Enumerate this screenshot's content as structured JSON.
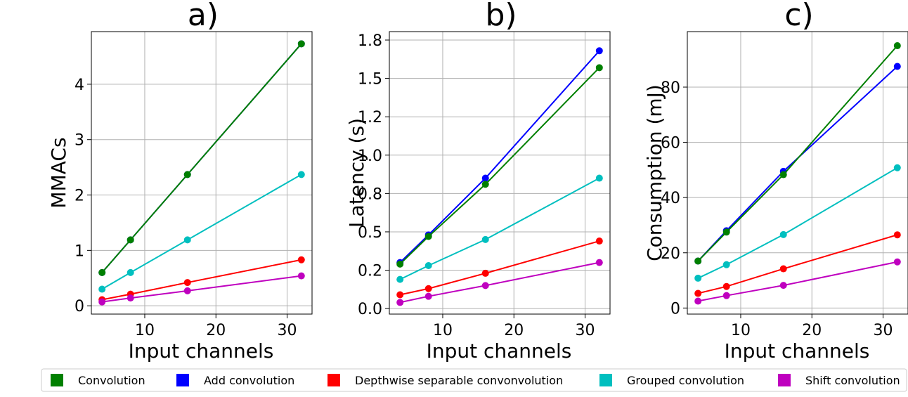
{
  "chart_data": [
    {
      "type": "line",
      "title": "a)",
      "xlabel": "Input channels",
      "ylabel": "MMACs",
      "x": [
        4,
        8,
        16,
        32
      ],
      "xlim": [
        2.5,
        33.5
      ],
      "ylim": [
        -0.15,
        4.95
      ],
      "xticks": [
        10,
        20,
        30
      ],
      "yticks": [
        0,
        1,
        2,
        3,
        4
      ],
      "yticklabels": [
        "0",
        "1",
        "2",
        "3",
        "4"
      ],
      "grid": true,
      "series": [
        {
          "name": "Grouped convolution",
          "color": "#00bfbf",
          "values": [
            0.3,
            0.6,
            1.19,
            2.37
          ]
        },
        {
          "name": "Depthwise separable convonvolution",
          "color": "#ff0000",
          "values": [
            0.11,
            0.21,
            0.42,
            0.83
          ]
        },
        {
          "name": "Shift convolution",
          "color": "#bf00bf",
          "values": [
            0.07,
            0.14,
            0.27,
            0.54
          ]
        },
        {
          "name": "Add convolution",
          "color": "#0000ff",
          "values": [
            0.6,
            1.19,
            2.37,
            4.73
          ]
        },
        {
          "name": "Convolution",
          "color": "#008000",
          "values": [
            0.6,
            1.19,
            2.37,
            4.73
          ]
        }
      ]
    },
    {
      "type": "line",
      "title": "b)",
      "xlabel": "Input channels",
      "ylabel": "Latency (s)",
      "x": [
        4,
        8,
        16,
        32
      ],
      "xlim": [
        2.5,
        33.5
      ],
      "ylim": [
        -0.036,
        1.805
      ],
      "xticks": [
        10,
        20,
        30
      ],
      "yticks": [
        0,
        0.25,
        0.5,
        0.75,
        1.0,
        1.25,
        1.5,
        1.75
      ],
      "yticklabels": [
        "0.0",
        "0.2",
        "0.5",
        "0.8",
        "1.0",
        "1.2",
        "1.5",
        "1.8"
      ],
      "grid": true,
      "series": [
        {
          "name": "Grouped convolution",
          "color": "#00bfbf",
          "values": [
            0.19,
            0.28,
            0.45,
            0.85
          ]
        },
        {
          "name": "Depthwise separable convonvolution",
          "color": "#ff0000",
          "values": [
            0.09,
            0.13,
            0.23,
            0.44
          ]
        },
        {
          "name": "Shift convolution",
          "color": "#bf00bf",
          "values": [
            0.04,
            0.08,
            0.15,
            0.3
          ]
        },
        {
          "name": "Add convolution",
          "color": "#0000ff",
          "values": [
            0.3,
            0.48,
            0.85,
            1.68
          ]
        },
        {
          "name": "Convolution",
          "color": "#008000",
          "values": [
            0.29,
            0.47,
            0.81,
            1.57
          ]
        }
      ]
    },
    {
      "type": "line",
      "title": "c)",
      "xlabel": "Input channels",
      "ylabel": "Consumption (mJ)",
      "x": [
        4,
        8,
        16,
        32
      ],
      "xlim": [
        2.5,
        33.5
      ],
      "ylim": [
        -2.2,
        100.1
      ],
      "xticks": [
        10,
        20,
        30
      ],
      "yticks": [
        0,
        20,
        40,
        60,
        80
      ],
      "yticklabels": [
        "0",
        "20",
        "40",
        "60",
        "80"
      ],
      "grid": true,
      "series": [
        {
          "name": "Grouped convolution",
          "color": "#00bfbf",
          "values": [
            10.8,
            15.7,
            26.6,
            50.8
          ]
        },
        {
          "name": "Depthwise separable convonvolution",
          "color": "#ff0000",
          "values": [
            5.3,
            7.8,
            14.2,
            26.5
          ]
        },
        {
          "name": "Shift convolution",
          "color": "#bf00bf",
          "values": [
            2.5,
            4.5,
            8.2,
            16.7
          ]
        },
        {
          "name": "Add convolution",
          "color": "#0000ff",
          "values": [
            17.0,
            28.0,
            49.5,
            87.5
          ]
        },
        {
          "name": "Convolution",
          "color": "#008000",
          "values": [
            17.0,
            27.5,
            48.3,
            95.0
          ]
        }
      ]
    }
  ],
  "legend": {
    "placement": "bottom",
    "items": [
      {
        "label": "Convolution",
        "color": "#008000"
      },
      {
        "label": "Add convolution",
        "color": "#0000ff"
      },
      {
        "label": "Depthwise separable convonvolution",
        "color": "#ff0000"
      },
      {
        "label": "Grouped convolution",
        "color": "#00bfbf"
      },
      {
        "label": "Shift convolution",
        "color": "#bf00bf"
      }
    ]
  }
}
